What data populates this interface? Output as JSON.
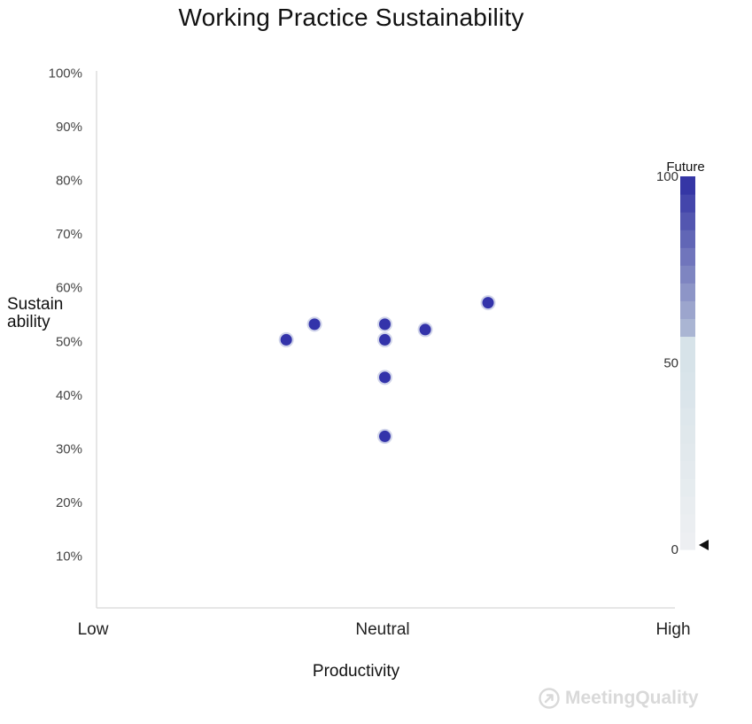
{
  "chart_data": {
    "type": "scatter",
    "title": "Working Practice Sustainability",
    "xlabel": "Productivity",
    "ylabel": "Sustain ability",
    "x_tick_labels": [
      "Low",
      "Neutral",
      "High"
    ],
    "xlim": [
      0,
      100
    ],
    "ylim": [
      0,
      100
    ],
    "y_tick_labels": [
      "10%",
      "20%",
      "30%",
      "40%",
      "50%",
      "60%",
      "70%",
      "80%",
      "90%",
      "100%"
    ],
    "y_ticks": [
      10,
      20,
      30,
      40,
      50,
      60,
      70,
      80,
      90,
      100
    ],
    "grid": false,
    "points": [
      {
        "x": 32.9,
        "y": 50.3
      },
      {
        "x": 37.8,
        "y": 53.2
      },
      {
        "x": 50.0,
        "y": 53.2
      },
      {
        "x": 50.0,
        "y": 50.3
      },
      {
        "x": 57.0,
        "y": 52.2
      },
      {
        "x": 67.9,
        "y": 57.2
      },
      {
        "x": 50.0,
        "y": 43.3
      },
      {
        "x": 50.0,
        "y": 32.3
      }
    ],
    "point_color": "#3333aa",
    "colorbar": {
      "title": "Future",
      "min": 0,
      "max": 100,
      "tick_labels": [
        "0",
        "50",
        "100"
      ],
      "ticks": [
        0,
        50,
        100
      ],
      "color_low": "#eef0f2",
      "color_mid": "#d7e3e9",
      "color_high": "#2e2ea2",
      "marker_value": 0
    }
  },
  "watermark": {
    "text": "MeetingQuality",
    "icon": "arrow-circle-icon"
  }
}
